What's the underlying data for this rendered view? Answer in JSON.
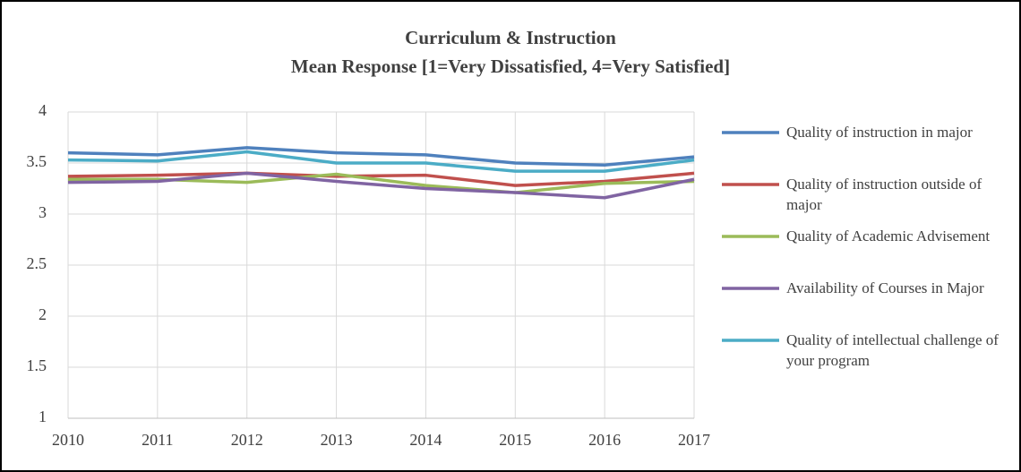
{
  "chart_data": {
    "type": "line",
    "title": "Curriculum & Instruction",
    "subtitle": "Mean Response [1=Very Dissatisfied, 4=Very Satisfied]",
    "categories": [
      "2010",
      "2011",
      "2012",
      "2013",
      "2014",
      "2015",
      "2016",
      "2017"
    ],
    "series": [
      {
        "name": "Quality of instruction in major",
        "color": "#4f81bd",
        "values": [
          3.6,
          3.58,
          3.65,
          3.6,
          3.58,
          3.5,
          3.48,
          3.56
        ]
      },
      {
        "name": "Quality of instruction outside of major",
        "color": "#c0504d",
        "values": [
          3.37,
          3.38,
          3.4,
          3.37,
          3.38,
          3.28,
          3.32,
          3.4
        ]
      },
      {
        "name": "Quality of Academic Advisement",
        "color": "#9bbb59",
        "values": [
          3.34,
          3.34,
          3.31,
          3.39,
          3.28,
          3.21,
          3.3,
          3.32
        ]
      },
      {
        "name": "Availability of Courses in Major",
        "color": "#8064a2",
        "values": [
          3.31,
          3.32,
          3.4,
          3.32,
          3.25,
          3.21,
          3.16,
          3.34
        ]
      },
      {
        "name": "Quality of intellectual challenge of your program",
        "color": "#4bacc6",
        "values": [
          3.53,
          3.52,
          3.61,
          3.5,
          3.5,
          3.42,
          3.42,
          3.53
        ]
      }
    ],
    "ylim": [
      1,
      4
    ],
    "yticks": [
      1,
      1.5,
      2,
      2.5,
      3,
      3.5,
      4
    ],
    "grid": true,
    "legend": "right"
  }
}
